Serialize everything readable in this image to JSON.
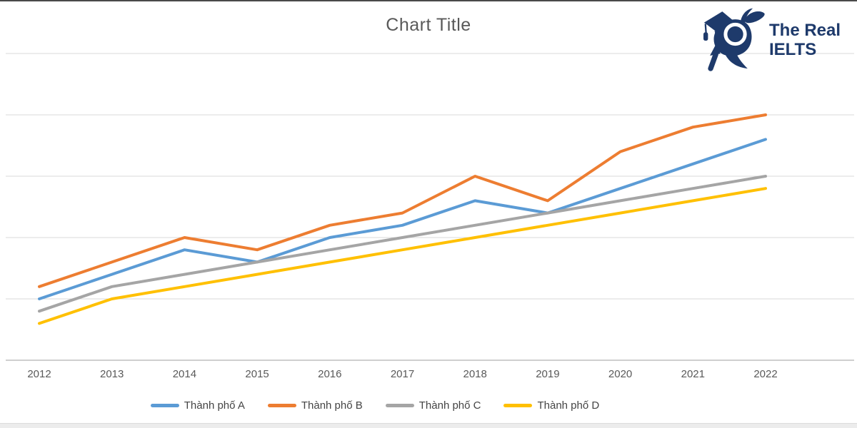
{
  "chart": {
    "title": "Chart Title"
  },
  "logo": {
    "line1": "The Real",
    "line2": "IELTS",
    "color": "#1e3a6b"
  },
  "chart_data": {
    "type": "line",
    "title": "Chart Title",
    "categories": [
      "2012",
      "2013",
      "2014",
      "2015",
      "2016",
      "2017",
      "2018",
      "2019",
      "2020",
      "2021",
      "2022"
    ],
    "series": [
      {
        "name": "Thành phố A",
        "color": "#5B9BD5",
        "values": [
          10,
          14,
          18,
          16,
          20,
          22,
          26,
          24,
          28,
          32,
          36
        ]
      },
      {
        "name": "Thành phố B",
        "color": "#ED7D31",
        "values": [
          12,
          16,
          20,
          18,
          22,
          24,
          30,
          26,
          34,
          38,
          40
        ]
      },
      {
        "name": "Thành phố C",
        "color": "#A5A5A5",
        "values": [
          8,
          12,
          14,
          16,
          18,
          20,
          22,
          24,
          26,
          28,
          30
        ]
      },
      {
        "name": "Thành phố D",
        "color": "#FFC000",
        "values": [
          6,
          10,
          12,
          14,
          16,
          18,
          20,
          22,
          24,
          26,
          28
        ]
      }
    ],
    "xlabel": "",
    "ylabel": "",
    "ylim": [
      0,
      50
    ],
    "gridline_step": 10,
    "grid": true,
    "y_axis_labels_visible": false,
    "legend_position": "bottom",
    "style": {
      "gridline_color": "#d9d9d9",
      "axis_color": "#bfbfbf",
      "title_color": "#595959",
      "tick_label_color": "#595959",
      "line_width": 4
    }
  }
}
